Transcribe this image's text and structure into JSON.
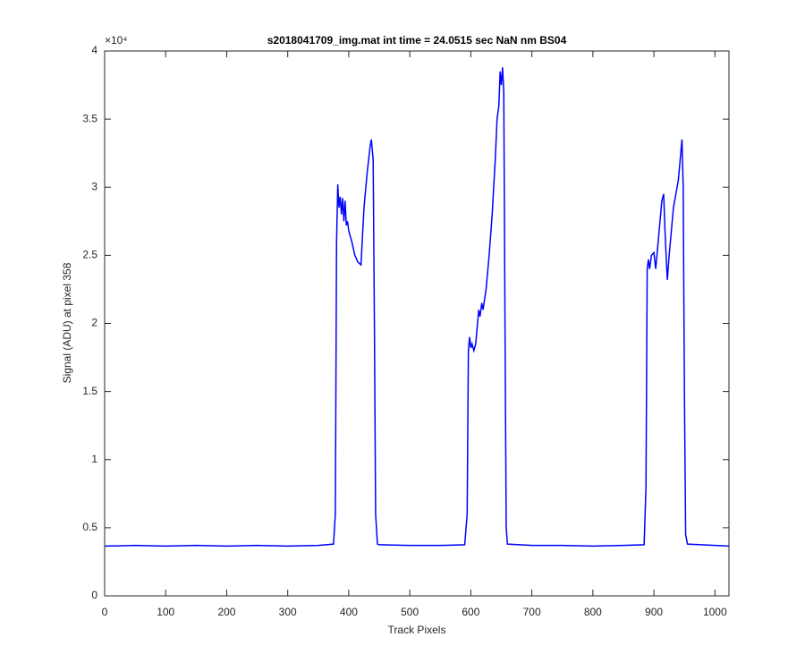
{
  "chart_data": {
    "type": "line",
    "title": "s2018041709_img.mat int time = 24.0515 sec  NaN nm BS04",
    "x_label": "Track Pixels",
    "y_label": "Signal (ADU) at pixel 358",
    "y_multiplier": "×10⁴",
    "x": [
      0,
      50,
      100,
      150,
      200,
      250,
      300,
      350,
      375,
      378,
      380,
      382,
      384,
      386,
      388,
      390,
      392,
      394,
      396,
      398,
      400,
      405,
      410,
      415,
      420,
      422,
      425,
      430,
      435,
      437,
      440,
      442,
      444,
      447,
      450,
      500,
      550,
      590,
      594,
      596,
      598,
      600,
      602,
      605,
      608,
      610,
      613,
      615,
      618,
      620,
      625,
      630,
      635,
      640,
      643,
      646,
      648,
      650,
      652,
      654,
      656,
      658,
      660,
      700,
      750,
      800,
      850,
      884,
      887,
      889,
      891,
      893,
      896,
      900,
      903,
      906,
      910,
      913,
      916,
      918,
      920,
      922,
      925,
      928,
      932,
      936,
      940,
      943,
      946,
      948,
      950,
      952,
      955,
      1000,
      1023
    ],
    "series": [
      {
        "name": "signal",
        "color": "#0000ff",
        "values": [
          0.365,
          0.37,
          0.365,
          0.37,
          0.365,
          0.37,
          0.365,
          0.37,
          0.38,
          0.6,
          2.6,
          3.02,
          2.85,
          2.93,
          2.8,
          2.92,
          2.75,
          2.9,
          2.72,
          2.75,
          2.68,
          2.6,
          2.5,
          2.45,
          2.43,
          2.6,
          2.85,
          3.1,
          3.3,
          3.35,
          3.2,
          2.0,
          0.6,
          0.38,
          0.375,
          0.37,
          0.37,
          0.375,
          0.6,
          1.8,
          1.9,
          1.82,
          1.85,
          1.8,
          1.85,
          1.95,
          2.1,
          2.05,
          2.15,
          2.1,
          2.25,
          2.5,
          2.8,
          3.2,
          3.5,
          3.6,
          3.85,
          3.75,
          3.88,
          3.7,
          2.0,
          0.5,
          0.38,
          0.37,
          0.37,
          0.365,
          0.37,
          0.375,
          0.8,
          2.4,
          2.47,
          2.4,
          2.5,
          2.52,
          2.4,
          2.55,
          2.75,
          2.9,
          2.95,
          2.7,
          2.5,
          2.32,
          2.5,
          2.65,
          2.85,
          2.95,
          3.05,
          3.2,
          3.35,
          3.0,
          1.5,
          0.45,
          0.38,
          0.37,
          0.365
        ]
      }
    ],
    "xlim": [
      0,
      1023
    ],
    "ylim": [
      0,
      4
    ],
    "xticks": [
      0,
      100,
      200,
      300,
      400,
      500,
      600,
      700,
      800,
      900,
      1000
    ],
    "yticks": [
      0,
      0.5,
      1,
      1.5,
      2,
      2.5,
      3,
      3.5,
      4
    ],
    "grid": false
  }
}
